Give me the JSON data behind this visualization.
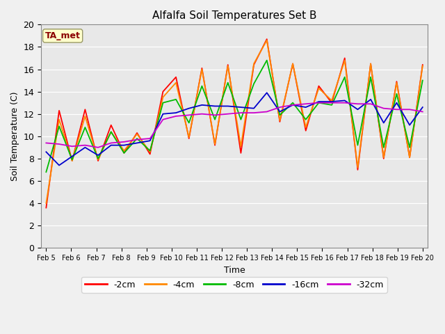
{
  "title": "Alfalfa Soil Temperatures Set B",
  "xlabel": "Time",
  "ylabel": "Soil Temperature (C)",
  "ylim": [
    0,
    20
  ],
  "background_color": "#e8e8e8",
  "fig_facecolor": "#f0f0f0",
  "annotation_label": "TA_met",
  "annotation_bg": "#ffffcc",
  "annotation_fg": "#8b0000",
  "xtick_labels": [
    "Feb 5",
    "Feb 6",
    "Feb 7",
    "Feb 8",
    "Feb 9",
    "Feb 10",
    "Feb 11",
    "Feb 12",
    "Feb 13",
    "Feb 14",
    "Feb 15",
    "Feb 16",
    "Feb 17",
    "Feb 18",
    "Feb 19",
    "Feb 20"
  ],
  "series": {
    "neg2cm": {
      "color": "#ff0000",
      "label": "-2cm",
      "linewidth": 1.3,
      "values": [
        3.6,
        12.3,
        7.8,
        12.4,
        7.8,
        11.0,
        8.5,
        10.3,
        8.4,
        14.0,
        15.3,
        9.8,
        16.1,
        9.2,
        16.4,
        8.5,
        16.4,
        18.7,
        11.3,
        16.5,
        10.5,
        14.5,
        13.0,
        17.0,
        7.0,
        16.5,
        8.0,
        14.9,
        8.1,
        16.4
      ]
    },
    "neg4cm": {
      "color": "#ff8800",
      "label": "-4cm",
      "linewidth": 1.3,
      "values": [
        4.0,
        11.5,
        7.8,
        11.8,
        7.9,
        10.4,
        8.7,
        10.2,
        8.6,
        13.5,
        14.8,
        9.9,
        16.0,
        9.3,
        16.3,
        9.1,
        16.5,
        18.6,
        11.4,
        16.5,
        10.8,
        14.3,
        13.2,
        16.8,
        7.2,
        16.5,
        8.1,
        14.8,
        8.1,
        16.3
      ]
    },
    "neg8cm": {
      "color": "#00bb00",
      "label": "-8cm",
      "linewidth": 1.3,
      "values": [
        6.8,
        10.9,
        7.9,
        10.8,
        8.0,
        10.4,
        8.5,
        9.8,
        8.7,
        13.0,
        13.3,
        11.2,
        14.5,
        11.5,
        14.8,
        11.5,
        14.7,
        16.8,
        11.9,
        13.0,
        11.5,
        13.0,
        12.8,
        15.3,
        9.2,
        15.3,
        9.0,
        13.8,
        9.0,
        15.0
      ]
    },
    "neg16cm": {
      "color": "#0000cc",
      "label": "-16cm",
      "linewidth": 1.3,
      "values": [
        8.6,
        7.4,
        8.2,
        9.0,
        8.3,
        9.2,
        9.2,
        9.4,
        9.6,
        12.0,
        12.1,
        12.5,
        12.8,
        12.7,
        12.7,
        12.6,
        12.5,
        13.9,
        12.2,
        12.8,
        12.6,
        13.1,
        13.1,
        13.2,
        12.4,
        13.3,
        11.2,
        13.0,
        11.0,
        12.6
      ]
    },
    "neg32cm": {
      "color": "#cc00cc",
      "label": "-32cm",
      "linewidth": 1.3,
      "values": [
        9.4,
        9.3,
        9.1,
        9.2,
        9.0,
        9.4,
        9.5,
        9.7,
        9.8,
        11.5,
        11.8,
        11.9,
        12.0,
        11.9,
        12.0,
        12.1,
        12.1,
        12.2,
        12.6,
        12.8,
        12.9,
        13.0,
        13.0,
        13.0,
        12.9,
        12.9,
        12.5,
        12.4,
        12.4,
        12.2
      ]
    }
  }
}
